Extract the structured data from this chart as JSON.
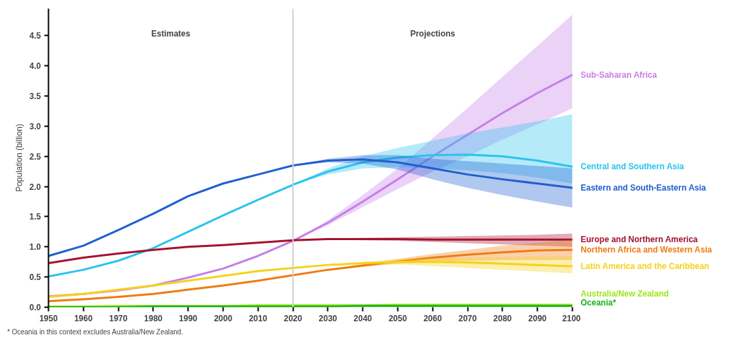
{
  "chart_data": {
    "type": "line",
    "ylabel": "Population (billion)",
    "x": [
      1950,
      1960,
      1970,
      1980,
      1990,
      2000,
      2010,
      2020,
      2030,
      2040,
      2050,
      2060,
      2070,
      2080,
      2090,
      2100
    ],
    "series": [
      {
        "name": "Sub-Saharan Africa",
        "color": "#c77ee8",
        "values": [
          0.18,
          0.22,
          0.28,
          0.36,
          0.49,
          0.64,
          0.85,
          1.1,
          1.4,
          1.75,
          2.12,
          2.5,
          2.86,
          3.22,
          3.55,
          3.85
        ],
        "lower": [
          null,
          null,
          null,
          null,
          null,
          null,
          null,
          1.1,
          1.36,
          1.66,
          1.96,
          2.25,
          2.5,
          2.78,
          3.03,
          3.3
        ],
        "upper": [
          null,
          null,
          null,
          null,
          null,
          null,
          null,
          1.1,
          1.44,
          1.86,
          2.3,
          2.8,
          3.3,
          3.82,
          4.33,
          4.85
        ]
      },
      {
        "name": "Central and Southern Asia",
        "color": "#2bc3ee",
        "values": [
          0.51,
          0.62,
          0.77,
          0.98,
          1.25,
          1.52,
          1.78,
          2.03,
          2.25,
          2.4,
          2.48,
          2.52,
          2.53,
          2.5,
          2.43,
          2.33
        ],
        "lower": [
          null,
          null,
          null,
          null,
          null,
          null,
          null,
          2.03,
          2.2,
          2.3,
          2.32,
          2.3,
          2.27,
          2.22,
          2.15,
          2.05
        ],
        "upper": [
          null,
          null,
          null,
          null,
          null,
          null,
          null,
          2.03,
          2.3,
          2.5,
          2.64,
          2.76,
          2.88,
          2.98,
          3.08,
          3.2
        ]
      },
      {
        "name": "Eastern and South-Eastern Asia",
        "color": "#1e5fd0",
        "values": [
          0.85,
          1.02,
          1.28,
          1.55,
          1.84,
          2.05,
          2.2,
          2.35,
          2.43,
          2.45,
          2.4,
          2.3,
          2.2,
          2.12,
          2.05,
          1.98
        ],
        "lower": [
          null,
          null,
          null,
          null,
          null,
          null,
          null,
          2.35,
          2.4,
          2.38,
          2.28,
          2.12,
          1.98,
          1.86,
          1.75,
          1.65
        ],
        "upper": [
          null,
          null,
          null,
          null,
          null,
          null,
          null,
          2.35,
          2.46,
          2.52,
          2.52,
          2.46,
          2.42,
          2.38,
          2.34,
          2.3
        ]
      },
      {
        "name": "Europe and Northern America",
        "color": "#a5112f",
        "values": [
          0.73,
          0.82,
          0.89,
          0.95,
          1.0,
          1.03,
          1.07,
          1.11,
          1.13,
          1.13,
          1.13,
          1.12,
          1.12,
          1.12,
          1.12,
          1.12
        ],
        "lower": [
          null,
          null,
          null,
          null,
          null,
          null,
          null,
          1.11,
          1.12,
          1.11,
          1.1,
          1.08,
          1.06,
          1.04,
          1.02,
          1.0
        ],
        "upper": [
          null,
          null,
          null,
          null,
          null,
          null,
          null,
          1.11,
          1.14,
          1.15,
          1.16,
          1.17,
          1.18,
          1.19,
          1.2,
          1.22
        ]
      },
      {
        "name": "Northern Africa and Western Asia",
        "color": "#f07b12",
        "values": [
          0.1,
          0.13,
          0.17,
          0.22,
          0.29,
          0.36,
          0.44,
          0.53,
          0.62,
          0.69,
          0.76,
          0.82,
          0.87,
          0.91,
          0.94,
          0.95
        ],
        "lower": [
          null,
          null,
          null,
          null,
          null,
          null,
          null,
          0.53,
          0.61,
          0.67,
          0.72,
          0.75,
          0.77,
          0.78,
          0.78,
          0.78
        ],
        "upper": [
          null,
          null,
          null,
          null,
          null,
          null,
          null,
          0.53,
          0.63,
          0.71,
          0.8,
          0.88,
          0.95,
          1.02,
          1.07,
          1.12
        ]
      },
      {
        "name": "Latin America and the Caribbean",
        "color": "#f5d21a",
        "values": [
          0.17,
          0.22,
          0.29,
          0.36,
          0.44,
          0.52,
          0.6,
          0.65,
          0.7,
          0.73,
          0.75,
          0.75,
          0.74,
          0.72,
          0.7,
          0.68
        ],
        "lower": [
          null,
          null,
          null,
          null,
          null,
          null,
          null,
          0.65,
          0.69,
          0.71,
          0.71,
          0.68,
          0.65,
          0.62,
          0.59,
          0.56
        ],
        "upper": [
          null,
          null,
          null,
          null,
          null,
          null,
          null,
          0.65,
          0.71,
          0.75,
          0.79,
          0.81,
          0.82,
          0.83,
          0.84,
          0.85
        ]
      },
      {
        "name": "Australia/New Zealand",
        "color": "#9ce61a",
        "values": [
          0.01,
          0.01,
          0.02,
          0.02,
          0.02,
          0.02,
          0.03,
          0.03,
          0.03,
          0.03,
          0.04,
          0.04,
          0.04,
          0.04,
          0.04,
          0.04
        ]
      },
      {
        "name": "Oceania*",
        "color": "#1ab21a",
        "values": [
          0.0,
          0.0,
          0.0,
          0.01,
          0.01,
          0.01,
          0.01,
          0.01,
          0.01,
          0.02,
          0.02,
          0.02,
          0.02,
          0.02,
          0.02,
          0.02
        ]
      }
    ],
    "xlim": [
      1950,
      2100
    ],
    "ylim": [
      0,
      4.95
    ],
    "xticks": [
      1950,
      1960,
      1970,
      1980,
      1990,
      2000,
      2010,
      2020,
      2030,
      2040,
      2050,
      2060,
      2070,
      2080,
      2090,
      2100
    ],
    "yticks": [
      {
        "value": 0,
        "label": "0.0"
      },
      0.5,
      {
        "value": 1,
        "label": "1.0"
      },
      1.5,
      {
        "value": 2,
        "label": "2.0"
      },
      2.5,
      {
        "value": 3,
        "label": "3.0"
      },
      3.5,
      {
        "value": 4,
        "label": "4.0"
      },
      4.5
    ],
    "ref_lines": [
      {
        "axis": "x",
        "value": 2020,
        "color": "#d0d0d0"
      }
    ],
    "annotations": [
      "Estimates",
      "Projections",
      "* Oceania in this context excludes Australia/New Zealand."
    ],
    "grid": false,
    "marker": "none",
    "line_style": "solid"
  }
}
